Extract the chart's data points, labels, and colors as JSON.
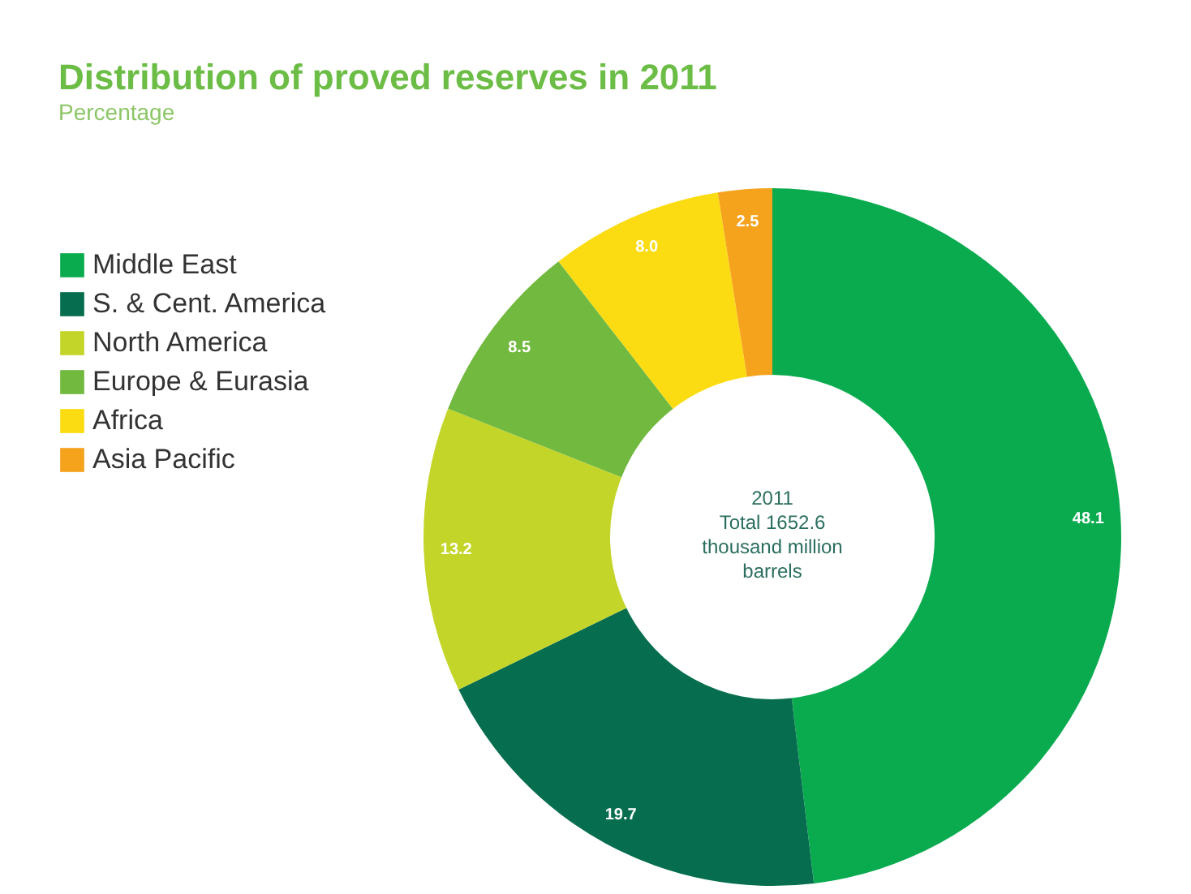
{
  "chart_data": {
    "type": "donut",
    "title": "Distribution of proved reserves in 2011",
    "subtitle": "Percentage",
    "categories": [
      "Middle East",
      "S. & Cent. America",
      "North America",
      "Europe & Eurasia",
      "Africa",
      "Asia Pacific"
    ],
    "values": [
      48.1,
      19.7,
      13.2,
      8.5,
      8.0,
      2.5
    ],
    "colors": [
      "#0aab4f",
      "#066e4e",
      "#c4d52a",
      "#72b93f",
      "#fbdc12",
      "#f5a21d"
    ],
    "value_labels": [
      "48.1",
      "19.7",
      "13.2",
      "8.5",
      "8.0",
      "2.5"
    ],
    "legend": "left",
    "annotations": [
      "2011",
      "Total 1652.6",
      "thousand million",
      "barrels"
    ]
  }
}
